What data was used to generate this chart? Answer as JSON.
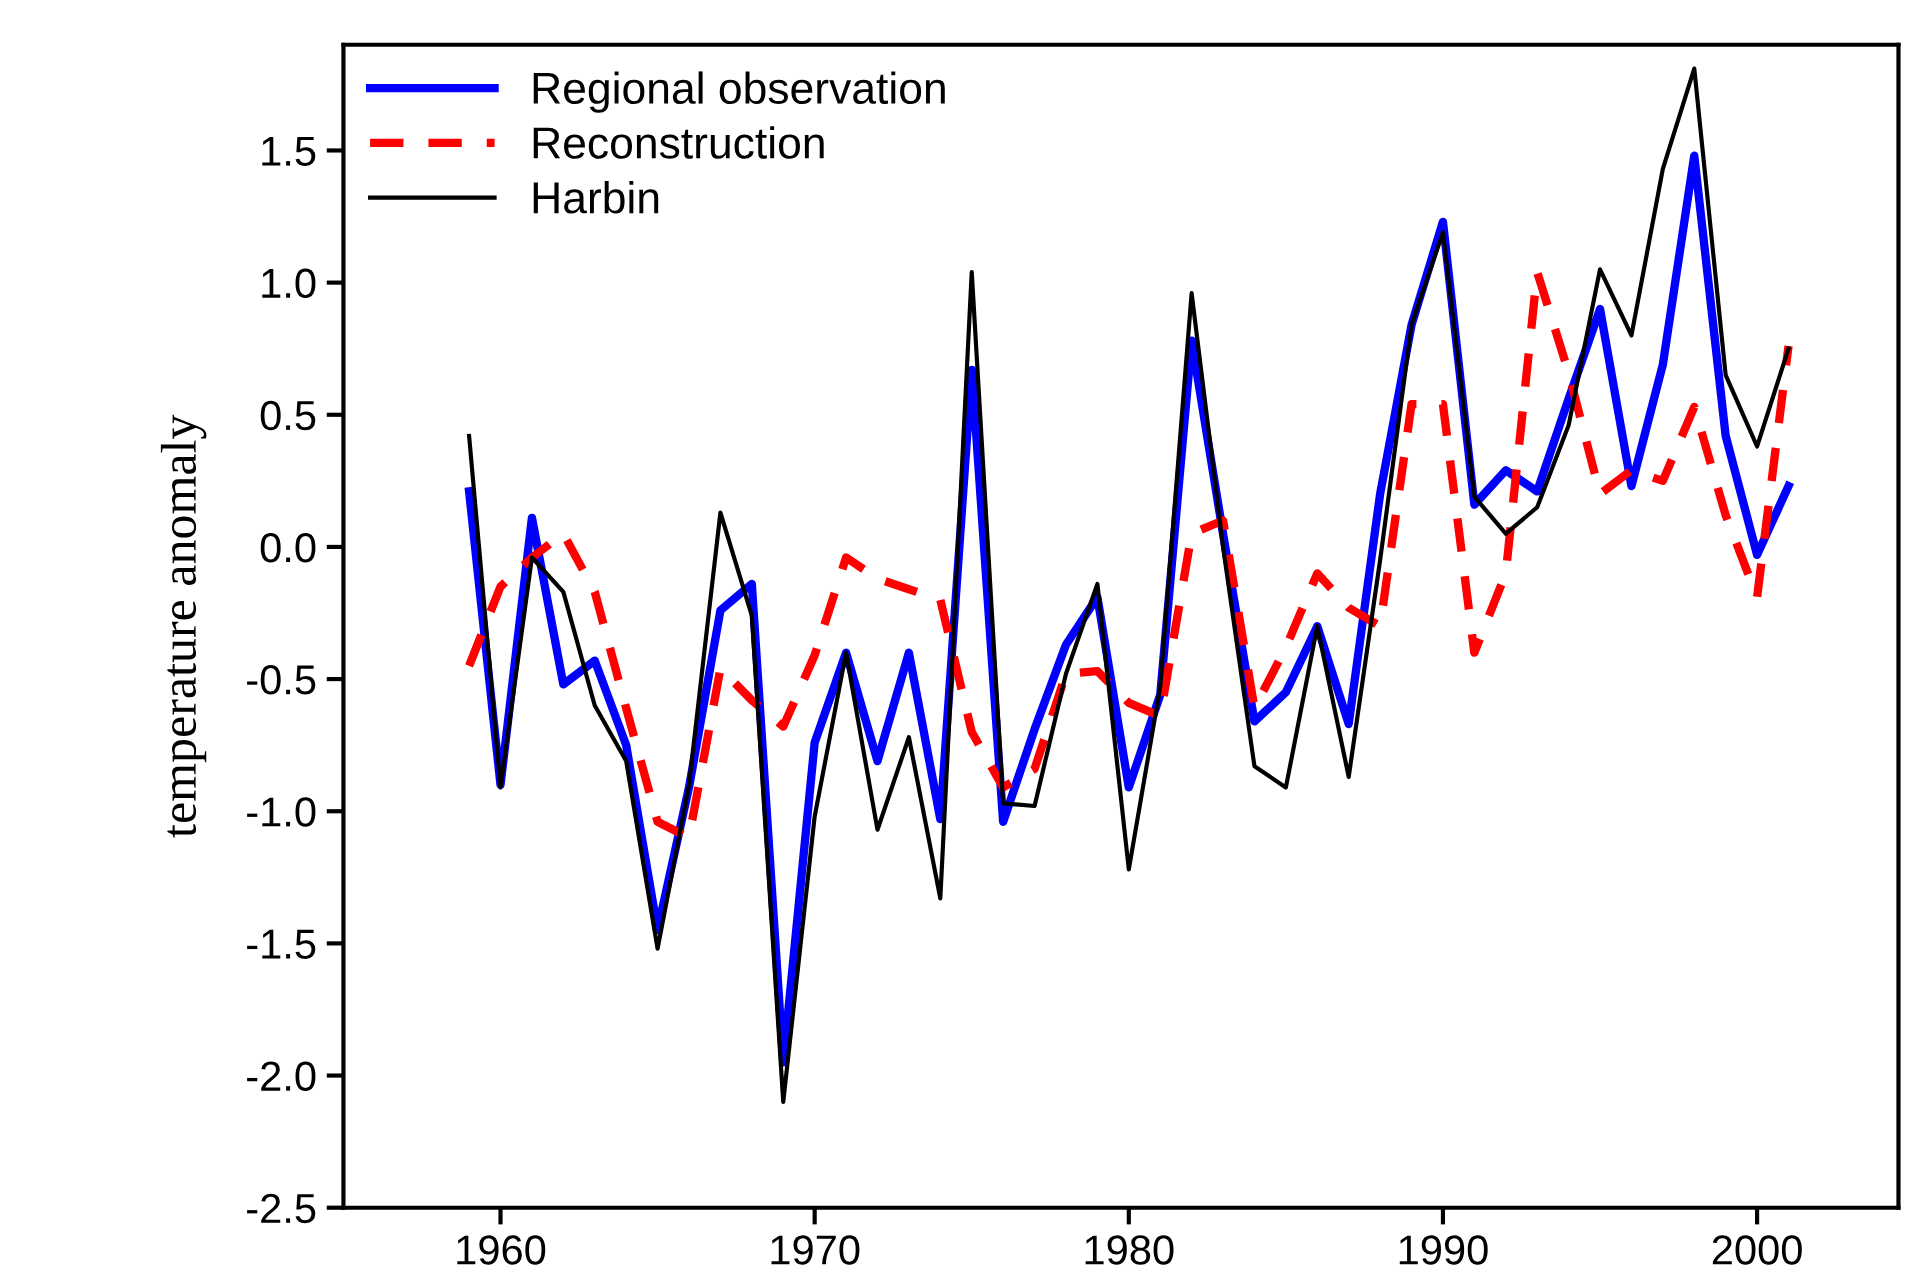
{
  "chart_data": {
    "type": "line",
    "ylabel": "temperature anomaly",
    "x": [
      1959,
      1960,
      1961,
      1962,
      1963,
      1964,
      1965,
      1966,
      1967,
      1968,
      1969,
      1970,
      1971,
      1972,
      1973,
      1974,
      1975,
      1976,
      1977,
      1978,
      1979,
      1980,
      1981,
      1982,
      1983,
      1984,
      1985,
      1986,
      1987,
      1988,
      1989,
      1990,
      1991,
      1992,
      1993,
      1994,
      1995,
      1996,
      1997,
      1998,
      1999,
      2000,
      2001
    ],
    "series": [
      {
        "name": "Regional observation",
        "color": "#0000ff",
        "line_style": "solid",
        "values": [
          0.21,
          -0.9,
          0.11,
          -0.52,
          -0.43,
          -0.75,
          -1.45,
          -0.91,
          -0.24,
          -0.14,
          -1.95,
          -0.74,
          -0.4,
          -0.81,
          -0.4,
          -1.03,
          0.67,
          -1.04,
          -0.69,
          -0.37,
          -0.19,
          -0.91,
          -0.56,
          0.78,
          0.05,
          -0.66,
          -0.55,
          -0.3,
          -0.67,
          0.2,
          0.84,
          1.23,
          0.16,
          0.29,
          0.21,
          0.56,
          0.9,
          0.23,
          0.69,
          1.48,
          0.42,
          -0.03,
          0.23
        ]
      },
      {
        "name": "Reconstruction",
        "color": "#ff0000",
        "line_style": "dashed",
        "values": [
          -0.45,
          -0.15,
          -0.04,
          0.05,
          -0.17,
          -0.61,
          -1.04,
          -1.1,
          -0.46,
          -0.58,
          -0.68,
          -0.41,
          -0.04,
          -0.12,
          -0.16,
          -0.2,
          -0.7,
          -0.91,
          -0.84,
          -0.48,
          -0.47,
          -0.59,
          -0.64,
          0.05,
          0.1,
          -0.61,
          -0.38,
          -0.1,
          -0.23,
          -0.3,
          0.54,
          0.54,
          -0.4,
          -0.1,
          1.04,
          0.66,
          0.2,
          0.29,
          0.25,
          0.53,
          0.12,
          -0.19,
          0.76
        ]
      },
      {
        "name": "Harbin",
        "color": "#000000",
        "line_style": "solid",
        "values": [
          0.42,
          -0.91,
          -0.04,
          -0.17,
          -0.6,
          -0.81,
          -1.52,
          -0.9,
          0.13,
          -0.26,
          -2.1,
          -1.02,
          -0.4,
          -1.07,
          -0.72,
          -1.33,
          1.04,
          -0.97,
          -0.98,
          -0.48,
          -0.14,
          -1.22,
          -0.53,
          0.96,
          0.0,
          -0.83,
          -0.91,
          -0.3,
          -0.87,
          -0.05,
          0.84,
          1.19,
          0.19,
          0.05,
          0.15,
          0.46,
          1.05,
          0.8,
          1.43,
          1.81,
          0.65,
          0.38,
          0.75
        ]
      }
    ],
    "xlim": [
      1955,
      2004.5
    ],
    "xticks": [
      1960,
      1970,
      1980,
      1990,
      2000
    ],
    "ylim": [
      -2.5,
      1.9
    ],
    "yticks": [
      {
        "value": -2.5,
        "label": "-2.5"
      },
      {
        "value": -2.0,
        "label": "-2.0"
      },
      {
        "value": -1.5,
        "label": "-1.5"
      },
      {
        "value": -1.0,
        "label": "-1.0"
      },
      {
        "value": -0.5,
        "label": "-0.5"
      },
      {
        "value": 0.0,
        "label": "0.0"
      },
      {
        "value": 0.5,
        "label": "0.5"
      },
      {
        "value": 1.0,
        "label": "1.0"
      },
      {
        "value": 1.5,
        "label": "1.5"
      }
    ],
    "grid": false,
    "legend": "top left",
    "marker": "none"
  }
}
